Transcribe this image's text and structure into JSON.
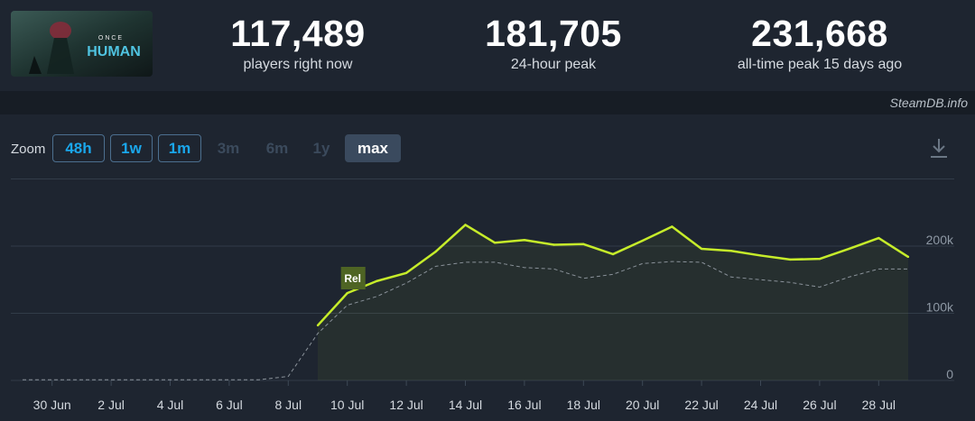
{
  "header": {
    "logo_alt": "ONCE HUMAN",
    "logo_line1": "ONCE",
    "logo_line2": "HUMAN",
    "stats": [
      {
        "value": "117,489",
        "label": "players right now"
      },
      {
        "value": "181,705",
        "label": "24-hour peak"
      },
      {
        "value": "231,668",
        "label": "all-time peak 15 days ago"
      }
    ]
  },
  "credit": "SteamDB.info",
  "zoom": {
    "label": "Zoom",
    "options": [
      {
        "label": "48h",
        "state": "active"
      },
      {
        "label": "1w",
        "state": "active"
      },
      {
        "label": "1m",
        "state": "active"
      },
      {
        "label": "3m",
        "state": "disabled"
      },
      {
        "label": "6m",
        "state": "disabled"
      },
      {
        "label": "1y",
        "state": "disabled"
      },
      {
        "label": "max",
        "state": "selected"
      }
    ]
  },
  "colors": {
    "players_line": "#c6ec2a",
    "average_line": "#8a929a",
    "grid": "#323c48",
    "annotation_bg": "#4e6424"
  },
  "chart_data": {
    "type": "line",
    "x": [
      "29 Jun",
      "30 Jun",
      "1 Jul",
      "2 Jul",
      "3 Jul",
      "4 Jul",
      "5 Jul",
      "6 Jul",
      "7 Jul",
      "8 Jul",
      "9 Jul",
      "10 Jul",
      "11 Jul",
      "12 Jul",
      "13 Jul",
      "14 Jul",
      "15 Jul",
      "16 Jul",
      "17 Jul",
      "18 Jul",
      "19 Jul",
      "20 Jul",
      "21 Jul",
      "22 Jul",
      "23 Jul",
      "24 Jul",
      "25 Jul",
      "26 Jul",
      "27 Jul",
      "28 Jul",
      "29 Jul"
    ],
    "x_tick_labels": [
      "30 Jun",
      "2 Jul",
      "4 Jul",
      "6 Jul",
      "8 Jul",
      "10 Jul",
      "12 Jul",
      "14 Jul",
      "16 Jul",
      "18 Jul",
      "20 Jul",
      "22 Jul",
      "24 Jul",
      "26 Jul",
      "28 Jul"
    ],
    "y_tick_labels": [
      "0",
      "100k",
      "200k"
    ],
    "ylim": [
      0,
      300000
    ],
    "series": [
      {
        "values": [
          null,
          null,
          null,
          null,
          null,
          null,
          null,
          null,
          null,
          null,
          82000,
          130000,
          148000,
          160000,
          192000,
          231668,
          205000,
          209000,
          202000,
          203000,
          188000,
          208000,
          229000,
          196000,
          193000,
          186000,
          180000,
          181000,
          196000,
          212000,
          184000
        ]
      },
      {
        "values": [
          1000,
          1000,
          1000,
          1000,
          1000,
          1000,
          1000,
          1000,
          1000,
          6000,
          70000,
          112000,
          125000,
          145000,
          170000,
          176000,
          176000,
          168000,
          166000,
          152000,
          158000,
          174000,
          177000,
          176000,
          154000,
          150000,
          146000,
          139000,
          154000,
          166000,
          166000
        ]
      }
    ],
    "annotations": [
      {
        "label": "Rel",
        "x": "10 Jul"
      }
    ],
    "grid": true,
    "legend": "none"
  }
}
